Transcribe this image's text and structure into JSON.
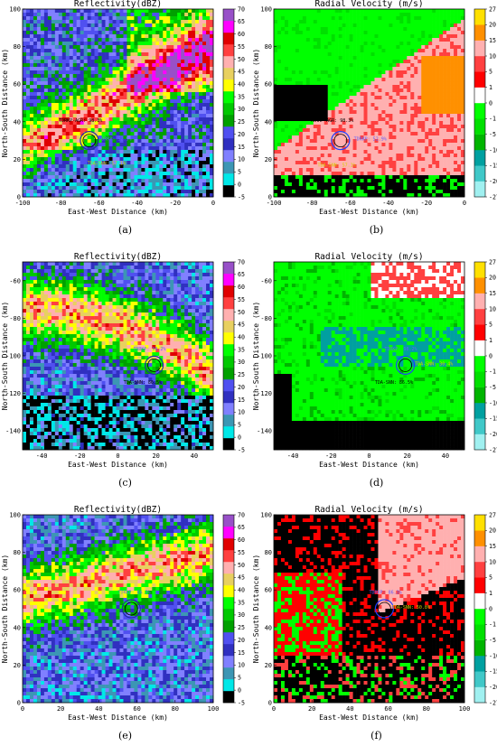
{
  "chart_data": [
    {
      "id": "a",
      "type": "heatmap",
      "caption": "(a)",
      "title": "Reflectivity(dBZ)",
      "xlabel": "East-West Distance (km)",
      "ylabel": "North-South Distance (km)",
      "xlim": [
        -100,
        0
      ],
      "ylim": [
        0,
        100
      ],
      "xticks": [
        -100,
        -80,
        -60,
        -40,
        -20,
        0
      ],
      "yticks": [
        0,
        20,
        40,
        60,
        80,
        100
      ],
      "colorbar": {
        "ticks": [
          -5,
          0,
          5,
          10,
          15,
          20,
          25,
          30,
          35,
          40,
          45,
          50,
          55,
          60,
          65,
          70
        ]
      },
      "marker": {
        "x": -65,
        "y": 30
      },
      "annotations": [
        {
          "text": "TDRKP: 52.9%",
          "x": -60,
          "y": 30,
          "color": "#6060ff"
        },
        {
          "text": "TDRKP-AGR: 98.3%",
          "x": -81,
          "y": 40,
          "color": "#000000"
        },
        {
          "text": "TDA-SNN: 57.1%",
          "x": -66,
          "y": 17,
          "color": "#d8d000"
        }
      ]
    },
    {
      "id": "b",
      "type": "heatmap",
      "caption": "(b)",
      "title": "Radial Velocity (m/s)",
      "xlabel": "East-West Distance (km)",
      "ylabel": "North-South Distance (km)",
      "xlim": [
        -100,
        0
      ],
      "ylim": [
        0,
        100
      ],
      "xticks": [
        -100,
        -80,
        -60,
        -40,
        -20,
        0
      ],
      "yticks": [
        0,
        20,
        40,
        60,
        80,
        100
      ],
      "colorbar": {
        "ticks": [
          -27,
          -20,
          -15,
          -10,
          -5,
          -1,
          0,
          1,
          5,
          10,
          15,
          20,
          27
        ]
      },
      "marker": {
        "x": -65,
        "y": 30
      },
      "annotations": [
        {
          "text": "TDRKP: 52.9%",
          "x": -58,
          "y": 30,
          "color": "#6060ff"
        },
        {
          "text": "TDRKP-AGR: 98.3%",
          "x": -81,
          "y": 40,
          "color": "#000000"
        },
        {
          "text": "TDA-SNN: 57.1%",
          "x": -77,
          "y": 16,
          "color": "#d8d000"
        }
      ]
    },
    {
      "id": "c",
      "type": "heatmap",
      "caption": "(c)",
      "title": "Reflectivity(dBZ)",
      "xlabel": "East-West Distance (km)",
      "ylabel": "North-South Distance (km)",
      "xlim": [
        -50,
        50
      ],
      "ylim": [
        -150,
        -50
      ],
      "xticks": [
        -40,
        -20,
        0,
        20,
        40
      ],
      "yticks": [
        -140,
        -120,
        -100,
        -80,
        -60
      ],
      "colorbar": {
        "ticks": [
          -5,
          0,
          5,
          10,
          15,
          20,
          25,
          30,
          35,
          40,
          45,
          50,
          55,
          60,
          65,
          70
        ]
      },
      "marker": {
        "x": 19,
        "y": -105
      },
      "annotations": [
        {
          "text": "TDRKP: 98.2%",
          "x": 8,
          "y": -97,
          "color": "#6060ff"
        },
        {
          "text": "TDA-SNN: 86.5%",
          "x": 3,
          "y": -115,
          "color": "#000000"
        }
      ]
    },
    {
      "id": "d",
      "type": "heatmap",
      "caption": "(d)",
      "title": "Radial Velocity (m/s)",
      "xlabel": "East-West Distance (km)",
      "ylabel": "North-South Distance (km)",
      "xlim": [
        -50,
        50
      ],
      "ylim": [
        -150,
        -50
      ],
      "xticks": [
        -40,
        -20,
        0,
        20,
        40
      ],
      "yticks": [
        -140,
        -120,
        -100,
        -80,
        -60
      ],
      "colorbar": {
        "ticks": [
          -27,
          -20,
          -15,
          -10,
          -5,
          -1,
          0,
          1,
          5,
          10,
          15,
          20,
          27
        ]
      },
      "marker": {
        "x": 19,
        "y": -105
      },
      "annotations": [
        {
          "text": "TDRKP: 98.2%",
          "x": 8,
          "y": -97,
          "color": "#6060ff"
        },
        {
          "text": "TDA-SNN: 30.4%",
          "x": 24,
          "y": -105,
          "color": "#d8d000"
        },
        {
          "text": "TDA-SNN: 86.5%",
          "x": 3,
          "y": -115,
          "color": "#000000"
        }
      ]
    },
    {
      "id": "e",
      "type": "heatmap",
      "caption": "(e)",
      "title": "Reflectivity(dBZ)",
      "xlabel": "East-West Distance (km)",
      "ylabel": "North-South Distance (km)",
      "xlim": [
        0,
        100
      ],
      "ylim": [
        0,
        100
      ],
      "xticks": [
        0,
        20,
        40,
        60,
        80,
        100
      ],
      "yticks": [
        0,
        20,
        40,
        60,
        80,
        100
      ],
      "colorbar": {
        "ticks": [
          -5,
          0,
          5,
          10,
          15,
          20,
          25,
          30,
          35,
          40,
          45,
          50,
          55,
          60,
          65,
          70
        ]
      },
      "marker": {
        "x": 57,
        "y": 50
      },
      "annotations": [
        {
          "text": "TDRKP: 86.3%",
          "x": 50,
          "y": 58,
          "color": "#6060ff"
        }
      ]
    },
    {
      "id": "f",
      "type": "heatmap",
      "caption": "(f)",
      "title": "Radial Velocity (m/s)",
      "xlabel": "East-West Distance (km)",
      "ylabel": "North-South Distance (km)",
      "xlim": [
        0,
        100
      ],
      "ylim": [
        0,
        100
      ],
      "xticks": [
        0,
        20,
        40,
        60,
        80,
        100
      ],
      "yticks": [
        0,
        20,
        40,
        60,
        80,
        100
      ],
      "colorbar": {
        "ticks": [
          -27,
          -20,
          -15,
          -10,
          -5,
          -1,
          0,
          1,
          5,
          10,
          15,
          20,
          27
        ]
      },
      "marker": {
        "x": 58,
        "y": 50
      },
      "annotations": [
        {
          "text": "TDRKP: 86.3%",
          "x": 50,
          "y": 58,
          "color": "#6060ff"
        },
        {
          "text": "TDA-SNN: 50.8%",
          "x": 62,
          "y": 50,
          "color": "#d8d000"
        }
      ]
    }
  ],
  "colormaps": {
    "reflectivity": [
      "#000000",
      "#00e8e8",
      "#3c96b4",
      "#8080ff",
      "#3030c0",
      "#5050f0",
      "#00a000",
      "#00c800",
      "#00ff00",
      "#ffff00",
      "#e8d060",
      "#ffb0b0",
      "#ff4040",
      "#e00000",
      "#ff00ff",
      "#9850c8"
    ],
    "velocity": [
      "#a0f0f0",
      "#40c8c8",
      "#00a0a0",
      "#00b400",
      "#00e000",
      "#00ff00",
      "#ffffff",
      "#ff0000",
      "#ff4040",
      "#ffb0b0",
      "#ff9000",
      "#ffe000"
    ]
  }
}
